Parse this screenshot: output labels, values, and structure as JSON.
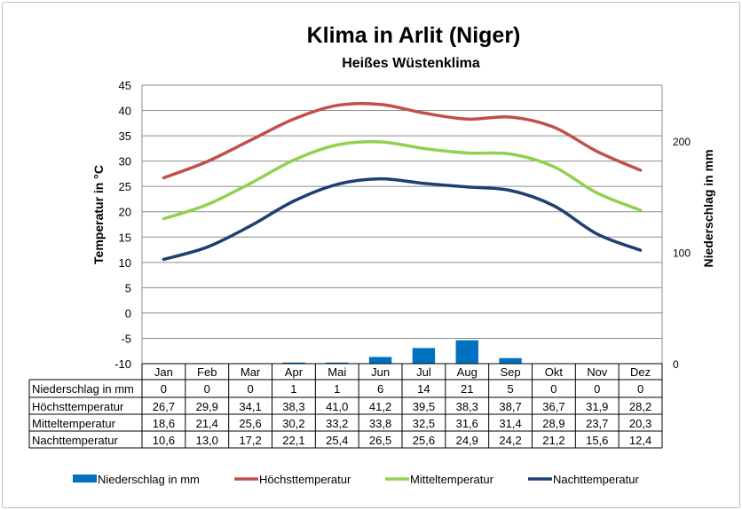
{
  "chart_data": {
    "type": "line+bar",
    "title": "Klima in Arlit (Niger)",
    "subtitle": "Heißes Wüstenklima",
    "ylabel": "Temperatur in °C",
    "y2label": "Niederschlag in mm",
    "ylim": [
      -10,
      45
    ],
    "yticks": [
      -10,
      -5,
      0,
      5,
      10,
      15,
      20,
      25,
      30,
      35,
      40,
      45
    ],
    "y2lim": [
      0,
      250
    ],
    "y2ticks": [
      0,
      100,
      200
    ],
    "categories": [
      "Jan",
      "Feb",
      "Mar",
      "Apr",
      "Mai",
      "Jun",
      "Jul",
      "Aug",
      "Sep",
      "Okt",
      "Nov",
      "Dez"
    ],
    "series": [
      {
        "name": "Niederschlag in mm",
        "type": "bar",
        "axis": "right",
        "color": "#0070c0",
        "values": [
          0,
          0,
          0,
          1,
          1,
          6,
          14,
          21,
          5,
          0,
          0,
          0
        ],
        "labels": [
          "0",
          "0",
          "0",
          "1",
          "1",
          "6",
          "14",
          "21",
          "5",
          "0",
          "0",
          "0"
        ]
      },
      {
        "name": "Höchsttemperatur",
        "type": "line",
        "color": "#c0504d",
        "values": [
          26.7,
          29.9,
          34.1,
          38.3,
          41.0,
          41.2,
          39.5,
          38.3,
          38.7,
          36.7,
          31.9,
          28.2
        ],
        "labels": [
          "26,7",
          "29,9",
          "34,1",
          "38,3",
          "41,0",
          "41,2",
          "39,5",
          "38,3",
          "38,7",
          "36,7",
          "31,9",
          "28,2"
        ]
      },
      {
        "name": "Mitteltemperatur",
        "type": "line",
        "color": "#92d050",
        "values": [
          18.6,
          21.4,
          25.6,
          30.2,
          33.2,
          33.8,
          32.5,
          31.6,
          31.4,
          28.9,
          23.7,
          20.3
        ],
        "labels": [
          "18,6",
          "21,4",
          "25,6",
          "30,2",
          "33,2",
          "33,8",
          "32,5",
          "31,6",
          "31,4",
          "28,9",
          "23,7",
          "20,3"
        ]
      },
      {
        "name": "Nachttemperatur",
        "type": "line",
        "color": "#1f3f73",
        "values": [
          10.6,
          13.0,
          17.2,
          22.1,
          25.4,
          26.5,
          25.6,
          24.9,
          24.2,
          21.2,
          15.6,
          12.4
        ],
        "labels": [
          "10,6",
          "13,0",
          "17,2",
          "22,1",
          "25,4",
          "26,5",
          "25,6",
          "24,9",
          "24,2",
          "21,2",
          "15,6",
          "12,4"
        ]
      }
    ],
    "grid": true,
    "legend": "bottom"
  }
}
